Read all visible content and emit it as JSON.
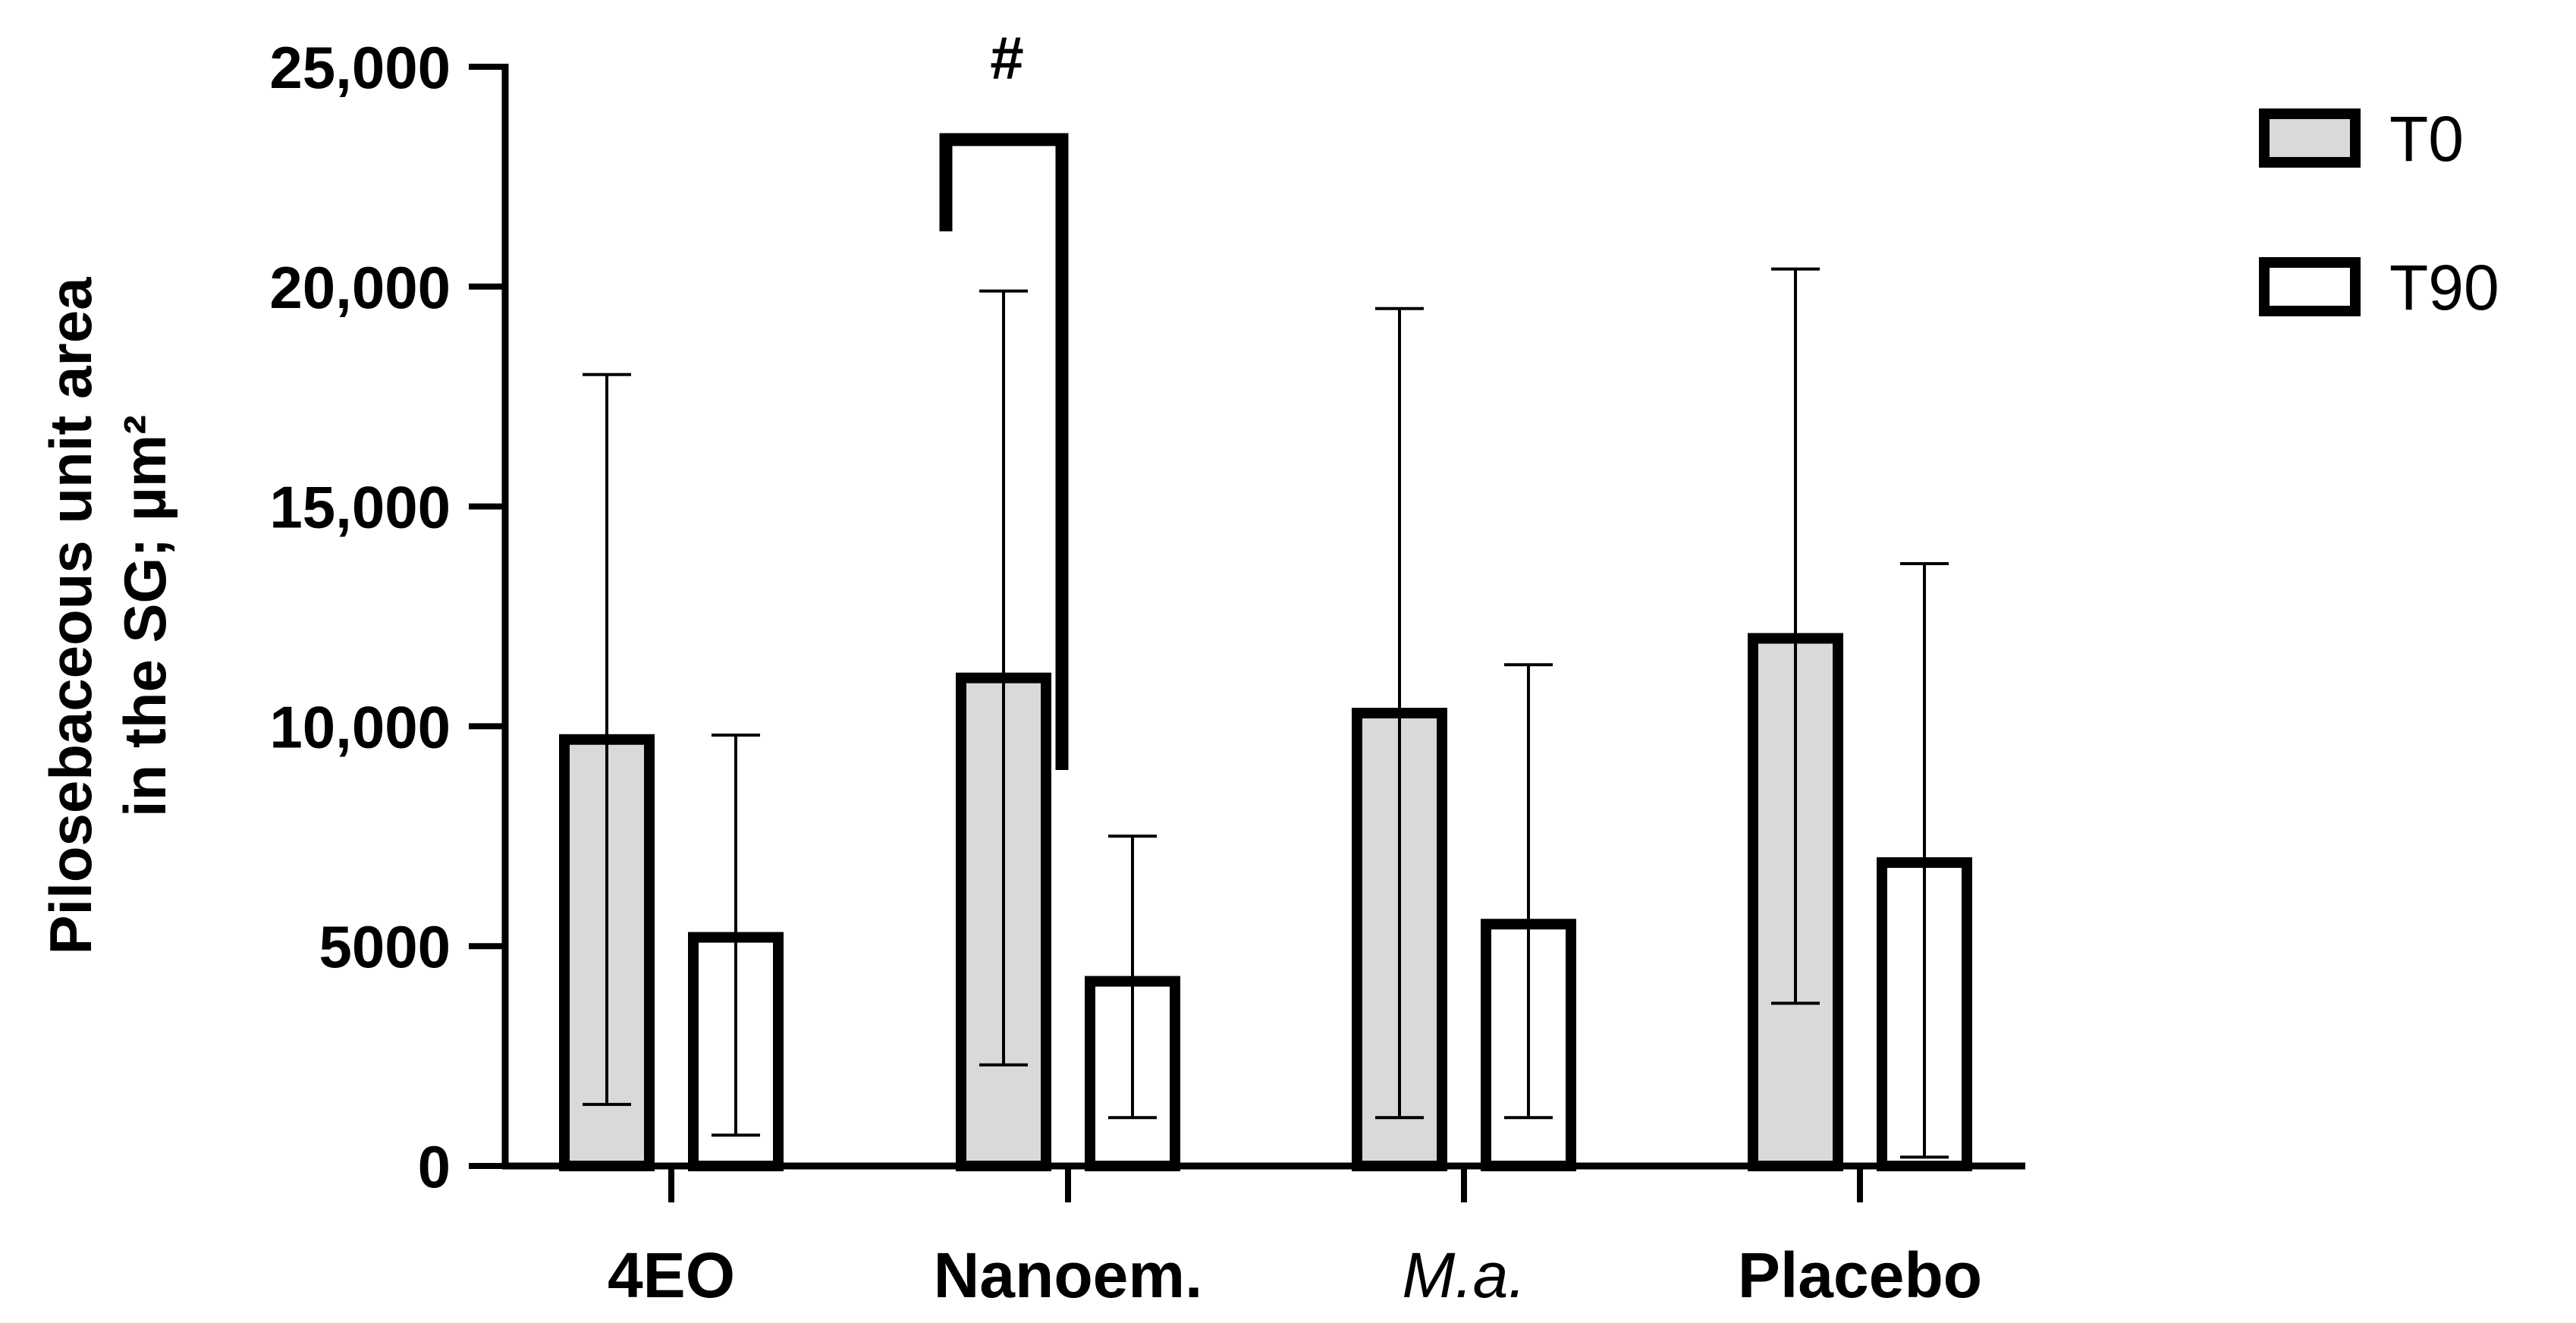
{
  "chart_data": {
    "type": "bar",
    "title": "",
    "xlabel": "",
    "ylabel_lines": [
      "Pilosebaceous unit area",
      "in the SG; µm²"
    ],
    "ylim": [
      0,
      25000
    ],
    "y_ticks": [
      {
        "value": 0,
        "label": "0"
      },
      {
        "value": 5000,
        "label": "5000"
      },
      {
        "value": 10000,
        "label": "10,000"
      },
      {
        "value": 15000,
        "label": "15,000"
      },
      {
        "value": 20000,
        "label": "20,000"
      },
      {
        "value": 25000,
        "label": "25,000"
      }
    ],
    "categories": [
      "4EO",
      "Nanoem.",
      "M.a.",
      "Placebo"
    ],
    "category_italic": [
      false,
      false,
      true,
      false
    ],
    "series": [
      {
        "name": "T0",
        "color": "#d9d9d9",
        "values": [
          9700,
          11100,
          10300,
          12000
        ],
        "error_low": [
          1400,
          2300,
          1100,
          3700
        ],
        "error_high": [
          18000,
          19900,
          19500,
          20400
        ]
      },
      {
        "name": "T90",
        "color": "#ffffff",
        "values": [
          5200,
          4200,
          5500,
          6900
        ],
        "error_low": [
          700,
          1100,
          1100,
          200
        ],
        "error_high": [
          9800,
          7500,
          11400,
          13700
        ]
      }
    ],
    "annotations": [
      {
        "type": "bracket",
        "category_index": 1,
        "label": "#"
      }
    ],
    "legend_position": "top-right",
    "grid": false
  }
}
